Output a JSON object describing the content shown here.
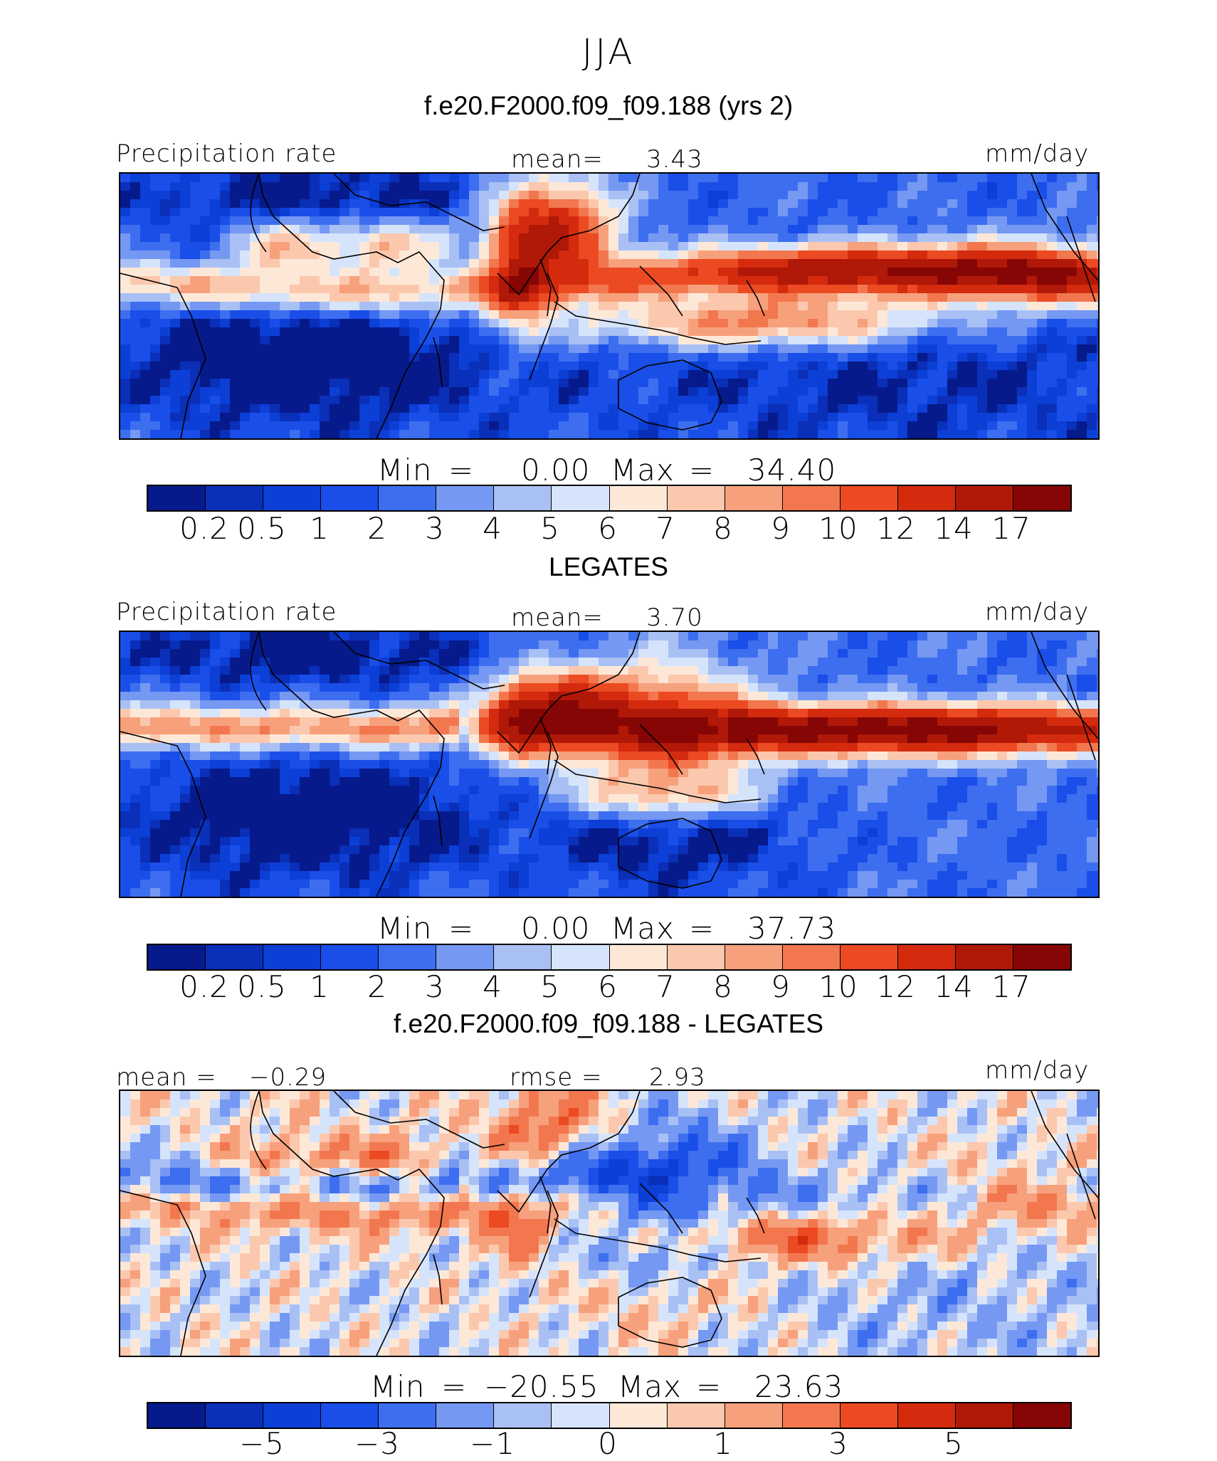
{
  "chart_data": [
    {
      "type": "heatmap",
      "title": "JJA",
      "subtitle": "f.e20.F2000.f09_f09.188 (yrs 2)",
      "left_label": "Precipitation rate",
      "center_label": "mean=",
      "center_value": "3.43",
      "units": "mm/day",
      "min_label": "Min",
      "min_value": "0.00",
      "max_label": "Max",
      "max_value": "34.40",
      "equals": "=",
      "colorbar_ticks": [
        "0.2",
        "0.5",
        "1",
        "2",
        "3",
        "4",
        "5",
        "6",
        "7",
        "8",
        "9",
        "10",
        "12",
        "14",
        "17"
      ]
    },
    {
      "type": "heatmap",
      "subtitle": "LEGATES",
      "left_label": "Precipitation rate",
      "center_label": "mean=",
      "center_value": "3.70",
      "units": "mm/day",
      "min_label": "Min",
      "min_value": "0.00",
      "max_label": "Max",
      "max_value": "37.73",
      "equals": "=",
      "colorbar_ticks": [
        "0.2",
        "0.5",
        "1",
        "2",
        "3",
        "4",
        "5",
        "6",
        "7",
        "8",
        "9",
        "10",
        "12",
        "14",
        "17"
      ]
    },
    {
      "type": "heatmap",
      "subtitle": "f.e20.F2000.f09_f09.188 - LEGATES",
      "left_label": "mean =",
      "left_value": "−0.29",
      "center_label": "rmse =",
      "center_value": "2.93",
      "units": "mm/day",
      "min_label": "Min",
      "min_value": "−20.55",
      "max_label": "Max",
      "max_value": "23.63",
      "equals": "=",
      "colorbar_ticks": [
        "−5",
        "−3",
        "−1",
        "0",
        "1",
        "3",
        "5"
      ]
    }
  ],
  "colors": {
    "scale": [
      "#061a8c",
      "#0a2fb8",
      "#0c3fd6",
      "#1a4ee8",
      "#3d6ef0",
      "#7598f2",
      "#a9c0f5",
      "#d6e4fb",
      "#fde8d8",
      "#fbc8ae",
      "#f7a07c",
      "#f2774f",
      "#ec4a22",
      "#d42a0e",
      "#b01808",
      "#850604"
    ],
    "coast": "#000000"
  }
}
